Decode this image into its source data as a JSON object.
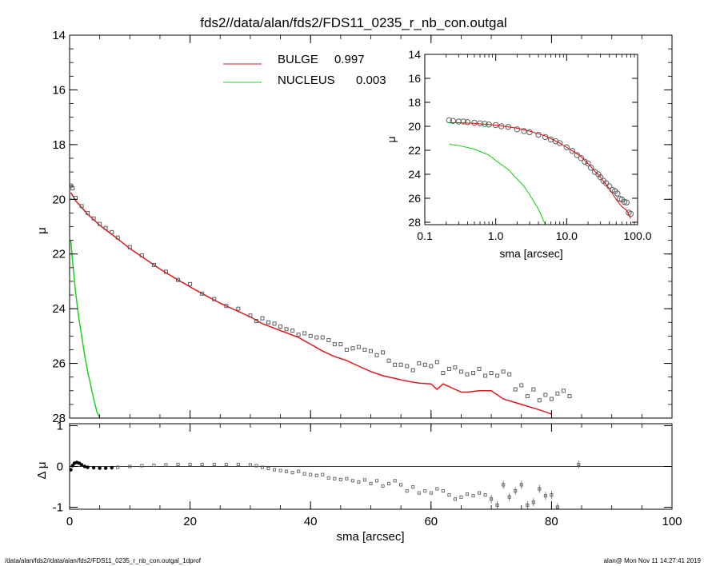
{
  "title": "fds2//data/alan/fds2/FDS11_0235_r_nb_con.outgal",
  "footer": {
    "left": "/data/alan/fds2//data/alan/fds2/FDS11_0235_r_nb_con.outgal_1dprof",
    "right": "alan@  Mon Nov 11 14:27:41 2019"
  },
  "colors": {
    "bulge": "#e0191b",
    "nucleus": "#19d41b",
    "data": "#606060",
    "axis": "#000000"
  },
  "chart_data": [
    {
      "id": "main",
      "type": "line",
      "ylabel": "μ",
      "xlim": [
        0,
        100
      ],
      "ylim": [
        28,
        14
      ],
      "yticks": [
        14,
        16,
        18,
        20,
        22,
        24,
        26,
        28
      ],
      "legend": [
        {
          "label": "BULGE",
          "value": "0.997",
          "color": "#e0191b"
        },
        {
          "label": "NUCLEUS",
          "value": "0.003",
          "color": "#19d41b"
        }
      ],
      "series": [
        {
          "name": "BULGE",
          "color": "#e0191b",
          "x": [
            0.2,
            1,
            2,
            3,
            5,
            8,
            10,
            12,
            15,
            18,
            20,
            22,
            25,
            28,
            30,
            32,
            35,
            38,
            40,
            42,
            44,
            46,
            48,
            50,
            52,
            54,
            56,
            58,
            60,
            61,
            62,
            63,
            64,
            65,
            66,
            68,
            70,
            72,
            75,
            78,
            80
          ],
          "y": [
            19.75,
            20.05,
            20.3,
            20.55,
            20.95,
            21.45,
            21.8,
            22.1,
            22.55,
            22.95,
            23.2,
            23.45,
            23.8,
            24.1,
            24.3,
            24.55,
            24.8,
            25.05,
            25.3,
            25.55,
            25.75,
            25.9,
            26.1,
            26.3,
            26.45,
            26.55,
            26.65,
            26.72,
            26.75,
            26.95,
            26.75,
            26.85,
            26.95,
            27.05,
            27.05,
            27.0,
            27.0,
            27.3,
            27.5,
            27.7,
            27.85
          ]
        },
        {
          "name": "NUCLEUS",
          "color": "#19d41b",
          "x": [
            0.2,
            0.5,
            1.0,
            1.5,
            2.0,
            2.5,
            3.0,
            3.5,
            4.0,
            4.5,
            5.0
          ],
          "y": [
            21.5,
            22.3,
            23.4,
            24.3,
            25.0,
            25.7,
            26.3,
            26.8,
            27.3,
            27.75,
            28.0
          ]
        },
        {
          "name": "data",
          "color": "#606060",
          "marker": "square",
          "x": [
            0.25,
            0.5,
            1,
            2,
            3,
            4,
            5,
            6,
            7,
            8,
            10,
            12,
            14,
            16,
            18,
            20,
            22,
            24,
            26,
            28,
            30,
            31,
            32,
            33,
            34,
            35,
            36,
            37,
            38,
            39,
            40,
            41,
            42,
            43,
            44,
            45,
            46,
            47,
            48,
            49,
            50,
            51,
            52,
            53,
            54,
            55,
            56,
            57,
            58,
            59,
            60,
            61,
            62,
            63,
            64,
            65,
            66,
            67,
            68,
            69,
            70,
            71,
            72,
            73,
            74,
            75,
            76,
            77,
            78,
            79,
            80,
            81,
            82,
            83
          ],
          "y": [
            19.5,
            19.6,
            19.95,
            20.25,
            20.5,
            20.7,
            20.9,
            21.05,
            21.2,
            21.4,
            21.75,
            22.05,
            22.4,
            22.65,
            22.95,
            23.1,
            23.45,
            23.65,
            23.9,
            24.0,
            24.25,
            24.45,
            24.35,
            24.5,
            24.55,
            24.65,
            24.75,
            24.8,
            24.95,
            24.9,
            25.0,
            25.05,
            25.05,
            25.15,
            25.3,
            25.3,
            25.5,
            25.45,
            25.4,
            25.5,
            25.55,
            25.7,
            25.6,
            25.9,
            26.05,
            26.05,
            26.1,
            26.25,
            26.0,
            26.05,
            26.1,
            25.95,
            26.35,
            26.2,
            26.15,
            26.3,
            26.4,
            26.35,
            26.2,
            26.45,
            26.35,
            26.45,
            26.3,
            26.4,
            26.95,
            26.8,
            27.2,
            26.95,
            27.35,
            27.15,
            27.3,
            27.1,
            27.0,
            27.2
          ]
        }
      ]
    },
    {
      "id": "residual",
      "type": "scatter",
      "xlabel": "sma [arcsec]",
      "ylabel": "Δ μ",
      "xlim": [
        0,
        100
      ],
      "ylim": [
        -1.05,
        1.05
      ],
      "xticks": [
        0,
        20,
        40,
        60,
        80,
        100
      ],
      "yticks": [
        -1,
        0,
        1
      ],
      "series": [
        {
          "name": "residual",
          "color": "#606060",
          "marker": "square",
          "x": [
            0.2,
            0.5,
            0.8,
            1.2,
            1.6,
            2.0,
            2.5,
            3.0,
            4,
            5,
            6,
            7,
            8,
            10,
            12,
            14,
            16,
            18,
            20,
            22,
            24,
            26,
            28,
            30,
            31,
            32,
            33,
            34,
            35,
            36,
            37,
            38,
            39,
            40,
            41,
            42,
            43,
            44,
            45,
            46,
            47,
            48,
            49,
            50,
            51,
            52,
            53,
            54,
            55,
            56,
            57,
            58,
            59,
            60,
            61,
            62,
            63,
            64,
            65,
            66,
            67,
            68,
            69,
            70,
            71,
            72,
            73,
            74,
            75,
            76,
            77,
            78,
            79,
            80,
            81,
            84.5
          ],
          "y": [
            -0.08,
            0.02,
            0.08,
            0.1,
            0.08,
            0.04,
            0.0,
            -0.02,
            -0.03,
            -0.04,
            -0.04,
            -0.03,
            -0.02,
            0.0,
            0.02,
            0.03,
            0.04,
            0.05,
            0.05,
            0.05,
            0.05,
            0.05,
            0.05,
            0.04,
            0.02,
            -0.02,
            -0.05,
            -0.08,
            -0.1,
            -0.12,
            -0.15,
            -0.12,
            -0.18,
            -0.2,
            -0.22,
            -0.2,
            -0.28,
            -0.3,
            -0.32,
            -0.3,
            -0.35,
            -0.38,
            -0.33,
            -0.42,
            -0.35,
            -0.48,
            -0.42,
            -0.35,
            -0.45,
            -0.6,
            -0.5,
            -0.65,
            -0.6,
            -0.65,
            -0.55,
            -0.6,
            -0.7,
            -0.8,
            -0.75,
            -0.68,
            -0.72,
            -0.65,
            -0.7,
            -0.8,
            -0.95,
            -0.45,
            -0.75,
            -0.6,
            -0.45,
            -0.95,
            -0.88,
            -0.55,
            -0.72,
            -0.7,
            -1.0,
            0.05
          ]
        }
      ]
    },
    {
      "id": "inset",
      "type": "line",
      "xlabel": "sma [arcsec]",
      "ylabel": "μ",
      "xscale": "log",
      "xlim": [
        0.1,
        100
      ],
      "ylim": [
        28.2,
        14
      ],
      "xticks": [
        0.1,
        1,
        10,
        100
      ],
      "xticklabels": [
        "0.1",
        "1.0",
        "10.0",
        "100.0"
      ],
      "yticks": [
        14,
        16,
        18,
        20,
        22,
        24,
        26,
        28
      ],
      "series": [
        {
          "name": "BULGE",
          "color": "#e0191b",
          "x": [
            0.22,
            0.3,
            0.5,
            0.8,
            1,
            2,
            3,
            5,
            8,
            10,
            15,
            20,
            30,
            40,
            50,
            60,
            70,
            80
          ],
          "y": [
            19.7,
            19.7,
            19.75,
            19.85,
            19.9,
            20.15,
            20.4,
            20.8,
            21.4,
            21.75,
            22.4,
            23.1,
            24.25,
            25.2,
            26.1,
            26.7,
            27.0,
            27.7
          ]
        },
        {
          "name": "NUCLEUS",
          "color": "#19d41b",
          "x": [
            0.22,
            0.3,
            0.5,
            0.8,
            1.0,
            1.5,
            2.0,
            2.5,
            3.0,
            4.0,
            5.0
          ],
          "y": [
            21.5,
            21.6,
            21.9,
            22.4,
            22.85,
            23.6,
            24.4,
            25.0,
            25.7,
            26.9,
            28.2
          ]
        },
        {
          "name": "data",
          "color": "#606060",
          "marker": "circle",
          "x": [
            0.22,
            0.25,
            0.3,
            0.35,
            0.4,
            0.5,
            0.6,
            0.7,
            0.8,
            1.0,
            1.2,
            1.5,
            2,
            2.5,
            3,
            4,
            5,
            6,
            7,
            8,
            10,
            12,
            14,
            16,
            18,
            20,
            22,
            25,
            28,
            30,
            33,
            36,
            40,
            44,
            48,
            52,
            56,
            60,
            65,
            70,
            75,
            80
          ],
          "y": [
            19.5,
            19.55,
            19.6,
            19.6,
            19.65,
            19.7,
            19.75,
            19.8,
            19.85,
            19.9,
            20.0,
            20.05,
            20.25,
            20.4,
            20.5,
            20.7,
            20.9,
            21.1,
            21.25,
            21.4,
            21.75,
            22.05,
            22.4,
            22.65,
            22.95,
            23.1,
            23.45,
            23.8,
            24.0,
            24.25,
            24.55,
            24.75,
            25.0,
            25.3,
            25.4,
            25.6,
            26.05,
            26.1,
            26.3,
            26.35,
            27.2,
            27.3
          ]
        }
      ]
    }
  ]
}
